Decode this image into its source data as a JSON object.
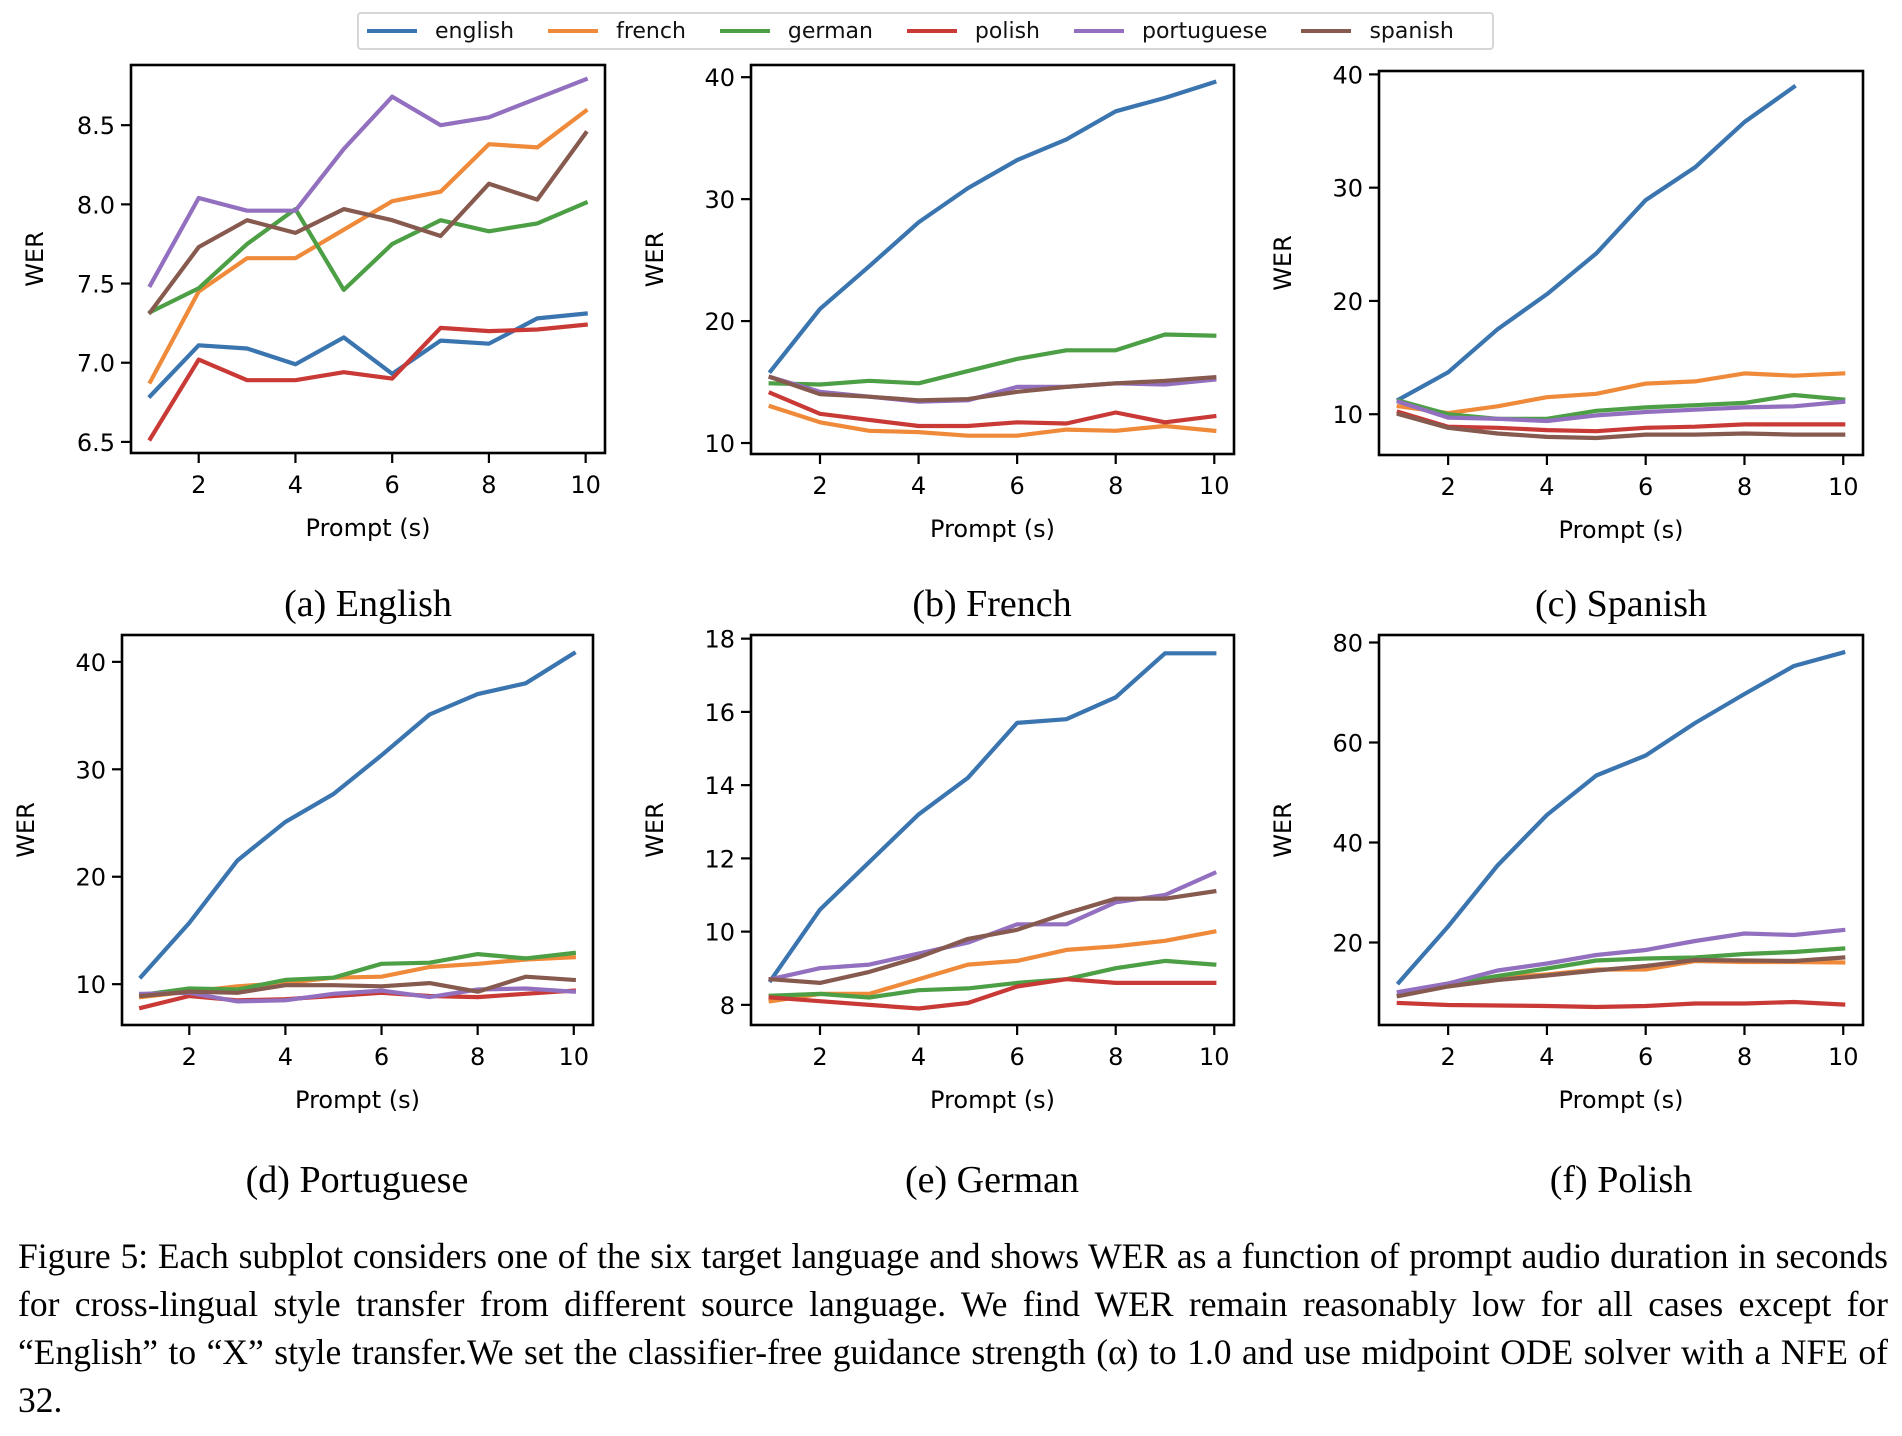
{
  "legend": [
    {
      "name": "english",
      "color": "#3a75b0"
    },
    {
      "name": "french",
      "color": "#ef8a3a"
    },
    {
      "name": "german",
      "color": "#4c9f45"
    },
    {
      "name": "polish",
      "color": "#c93a36"
    },
    {
      "name": "portuguese",
      "color": "#9370bf"
    },
    {
      "name": "spanish",
      "color": "#875a4f"
    }
  ],
  "figure_caption": "Figure 5: Each subplot considers one of the six target language and shows WER as a function of prompt audio duration in seconds for cross-lingual style transfer from different source language. We find WER remain reasonably low for all cases except for “English” to “X” style transfer.We set the classifier-free guidance strength (α) to 1.0 and use midpoint ODE solver with a NFE of 32.",
  "chart_data": [
    {
      "type": "line",
      "title": "(a) English",
      "xlabel": "Prompt (s)",
      "ylabel": "WER",
      "x": [
        1,
        2,
        3,
        4,
        5,
        6,
        7,
        8,
        9,
        10
      ],
      "xticks": [
        2,
        4,
        6,
        8,
        10
      ],
      "xlim": [
        0.6,
        10.4
      ],
      "yticks": [
        6.5,
        7.0,
        7.5,
        8.0,
        8.5
      ],
      "ytick_labels": [
        "6.5",
        "7.0",
        "7.5",
        "8.0",
        "8.5"
      ],
      "ylim": [
        6.43,
        8.88
      ],
      "grid": false,
      "legend": "top-center (shared)",
      "series": [
        {
          "name": "english",
          "values": [
            6.79,
            7.11,
            7.09,
            6.99,
            7.16,
            6.93,
            7.14,
            7.12,
            7.28,
            7.31
          ]
        },
        {
          "name": "french",
          "values": [
            6.88,
            7.45,
            7.66,
            7.66,
            7.84,
            8.02,
            8.08,
            8.38,
            8.36,
            8.59
          ]
        },
        {
          "name": "german",
          "values": [
            7.32,
            7.47,
            7.75,
            7.97,
            7.46,
            7.75,
            7.9,
            7.83,
            7.88,
            8.01
          ]
        },
        {
          "name": "polish",
          "values": [
            6.52,
            7.02,
            6.89,
            6.89,
            6.94,
            6.9,
            7.22,
            7.2,
            7.21,
            7.24
          ]
        },
        {
          "name": "portuguese",
          "values": [
            7.49,
            8.04,
            7.96,
            7.96,
            8.35,
            8.68,
            8.5,
            8.55,
            8.67,
            8.79
          ]
        },
        {
          "name": "spanish",
          "values": [
            7.32,
            7.73,
            7.9,
            7.82,
            7.97,
            7.9,
            7.8,
            8.13,
            8.03,
            8.45
          ]
        }
      ]
    },
    {
      "type": "line",
      "title": "(b) French",
      "xlabel": "Prompt (s)",
      "ylabel": "WER",
      "x": [
        1,
        2,
        3,
        4,
        5,
        6,
        7,
        8,
        9,
        10
      ],
      "xticks": [
        2,
        4,
        6,
        8,
        10
      ],
      "xlim": [
        0.6,
        10.4
      ],
      "yticks": [
        10,
        20,
        30,
        40
      ],
      "ytick_labels": [
        "10",
        "20",
        "30",
        "40"
      ],
      "ylim": [
        9.1,
        41.0
      ],
      "grid": false,
      "series": [
        {
          "name": "english",
          "values": [
            15.9,
            21.0,
            24.5,
            28.1,
            30.9,
            33.2,
            34.9,
            37.2,
            38.3,
            39.6
          ]
        },
        {
          "name": "french",
          "values": [
            13.0,
            11.7,
            11.0,
            10.9,
            10.6,
            10.6,
            11.1,
            11.0,
            11.4,
            11.0
          ]
        },
        {
          "name": "german",
          "values": [
            14.9,
            14.8,
            15.1,
            14.9,
            15.9,
            16.9,
            17.6,
            17.6,
            18.9,
            18.8
          ]
        },
        {
          "name": "polish",
          "values": [
            14.1,
            12.4,
            11.9,
            11.4,
            11.4,
            11.7,
            11.6,
            12.5,
            11.7,
            12.2
          ]
        },
        {
          "name": "portuguese",
          "values": [
            15.4,
            14.2,
            13.8,
            13.4,
            13.5,
            14.6,
            14.6,
            14.9,
            14.8,
            15.2
          ]
        },
        {
          "name": "spanish",
          "values": [
            15.4,
            14.0,
            13.8,
            13.5,
            13.6,
            14.2,
            14.6,
            14.9,
            15.1,
            15.4
          ]
        }
      ]
    },
    {
      "type": "line",
      "title": "(c) Spanish",
      "xlabel": "Prompt (s)",
      "ylabel": "WER",
      "x": [
        1,
        2,
        3,
        4,
        5,
        6,
        7,
        8,
        9,
        10
      ],
      "xticks": [
        2,
        4,
        6,
        8,
        10
      ],
      "xlim": [
        0.6,
        10.4
      ],
      "yticks": [
        10,
        20,
        30,
        40
      ],
      "ytick_labels": [
        "10",
        "20",
        "30",
        "40"
      ],
      "ylim": [
        6.4,
        40.3
      ],
      "grid": false,
      "series": [
        {
          "name": "english",
          "values": [
            11.3,
            13.7,
            17.5,
            20.6,
            24.2,
            28.9,
            31.8,
            35.8,
            38.9,
            null
          ]
        },
        {
          "name": "french",
          "values": [
            10.7,
            10.1,
            10.7,
            11.5,
            11.8,
            12.7,
            12.9,
            13.6,
            13.4,
            13.6
          ]
        },
        {
          "name": "german",
          "values": [
            11.2,
            10.0,
            9.6,
            9.6,
            10.3,
            10.6,
            10.8,
            11.0,
            11.7,
            11.3
          ]
        },
        {
          "name": "polish",
          "values": [
            10.2,
            8.9,
            8.8,
            8.6,
            8.5,
            8.8,
            8.9,
            9.1,
            9.1,
            9.1
          ]
        },
        {
          "name": "portuguese",
          "values": [
            11.1,
            9.7,
            9.6,
            9.4,
            9.9,
            10.2,
            10.4,
            10.6,
            10.7,
            11.1
          ]
        },
        {
          "name": "spanish",
          "values": [
            10.0,
            8.8,
            8.3,
            8.0,
            7.9,
            8.2,
            8.2,
            8.3,
            8.2,
            8.2
          ]
        }
      ]
    },
    {
      "type": "line",
      "title": "(d) Portuguese",
      "xlabel": "Prompt (s)",
      "ylabel": "WER",
      "x": [
        1,
        2,
        3,
        4,
        5,
        6,
        7,
        8,
        9,
        10
      ],
      "xticks": [
        2,
        4,
        6,
        8,
        10
      ],
      "xlim": [
        0.6,
        10.4
      ],
      "yticks": [
        10,
        20,
        30,
        40
      ],
      "ytick_labels": [
        "10",
        "20",
        "30",
        "40"
      ],
      "ylim": [
        6.2,
        42.5
      ],
      "grid": false,
      "series": [
        {
          "name": "english",
          "values": [
            10.7,
            15.7,
            21.5,
            25.1,
            27.7,
            31.3,
            35.1,
            37.0,
            38.0,
            40.8
          ]
        },
        {
          "name": "french",
          "values": [
            8.8,
            9.3,
            9.8,
            10.1,
            10.6,
            10.7,
            11.6,
            11.9,
            12.3,
            12.5
          ]
        },
        {
          "name": "german",
          "values": [
            9.0,
            9.6,
            9.5,
            10.4,
            10.6,
            11.9,
            12.0,
            12.8,
            12.4,
            12.9
          ]
        },
        {
          "name": "polish",
          "values": [
            7.8,
            8.9,
            8.5,
            8.6,
            8.9,
            9.2,
            8.9,
            8.8,
            9.1,
            9.4
          ]
        },
        {
          "name": "portuguese",
          "values": [
            9.1,
            9.2,
            8.4,
            8.5,
            9.1,
            9.4,
            8.8,
            9.5,
            9.6,
            9.3
          ]
        },
        {
          "name": "spanish",
          "values": [
            8.9,
            9.3,
            9.2,
            9.9,
            9.9,
            9.8,
            10.1,
            9.3,
            10.7,
            10.4
          ]
        }
      ]
    },
    {
      "type": "line",
      "title": "(e) German",
      "xlabel": "Prompt (s)",
      "ylabel": "WER",
      "x": [
        1,
        2,
        3,
        4,
        5,
        6,
        7,
        8,
        9,
        10
      ],
      "xticks": [
        2,
        4,
        6,
        8,
        10
      ],
      "xlim": [
        0.6,
        10.4
      ],
      "yticks": [
        8,
        10,
        12,
        14,
        16,
        18
      ],
      "ytick_labels": [
        "8",
        "10",
        "12",
        "14",
        "16",
        "18"
      ],
      "ylim": [
        7.45,
        18.1
      ],
      "grid": false,
      "series": [
        {
          "name": "english",
          "values": [
            8.67,
            10.6,
            11.9,
            13.2,
            14.2,
            15.7,
            15.8,
            16.4,
            17.6,
            17.6
          ]
        },
        {
          "name": "french",
          "values": [
            8.1,
            8.3,
            8.3,
            8.7,
            9.1,
            9.2,
            9.5,
            9.6,
            9.75,
            10.0
          ]
        },
        {
          "name": "german",
          "values": [
            8.25,
            8.3,
            8.2,
            8.4,
            8.45,
            8.6,
            8.7,
            9.0,
            9.2,
            9.1
          ]
        },
        {
          "name": "polish",
          "values": [
            8.2,
            8.1,
            8.0,
            7.9,
            8.05,
            8.5,
            8.7,
            8.6,
            8.6,
            8.6
          ]
        },
        {
          "name": "portuguese",
          "values": [
            8.7,
            9.0,
            9.1,
            9.4,
            9.7,
            10.2,
            10.2,
            10.8,
            11.0,
            11.6
          ]
        },
        {
          "name": "spanish",
          "values": [
            8.7,
            8.6,
            8.9,
            9.3,
            9.8,
            10.05,
            10.5,
            10.9,
            10.9,
            11.1
          ]
        }
      ]
    },
    {
      "type": "line",
      "title": "(f) Polish",
      "xlabel": "Prompt (s)",
      "ylabel": "WER",
      "x": [
        1,
        2,
        3,
        4,
        5,
        6,
        7,
        8,
        9,
        10
      ],
      "xticks": [
        2,
        4,
        6,
        8,
        10
      ],
      "xlim": [
        0.6,
        10.4
      ],
      "yticks": [
        20,
        40,
        60,
        80
      ],
      "ytick_labels": [
        "20",
        "40",
        "60",
        "80"
      ],
      "ylim": [
        3.5,
        81.5
      ],
      "grid": false,
      "series": [
        {
          "name": "english",
          "values": [
            12.0,
            23.2,
            35.4,
            45.5,
            53.4,
            57.4,
            63.9,
            69.7,
            75.3,
            78.0
          ]
        },
        {
          "name": "french",
          "values": [
            9.4,
            11.3,
            13.0,
            13.6,
            14.6,
            14.6,
            16.3,
            16.1,
            16.1,
            16.0
          ]
        },
        {
          "name": "german",
          "values": [
            9.4,
            11.6,
            13.3,
            14.8,
            16.4,
            16.8,
            17.0,
            17.7,
            18.1,
            18.8
          ]
        },
        {
          "name": "polish",
          "values": [
            7.9,
            7.5,
            7.4,
            7.3,
            7.1,
            7.3,
            7.8,
            7.8,
            8.1,
            7.6
          ]
        },
        {
          "name": "portuguese",
          "values": [
            10.1,
            11.8,
            14.4,
            15.8,
            17.5,
            18.5,
            20.3,
            21.8,
            21.5,
            22.5
          ]
        },
        {
          "name": "spanish",
          "values": [
            9.3,
            11.2,
            12.5,
            13.4,
            14.4,
            15.3,
            16.5,
            16.4,
            16.3,
            17.0
          ]
        }
      ]
    }
  ]
}
